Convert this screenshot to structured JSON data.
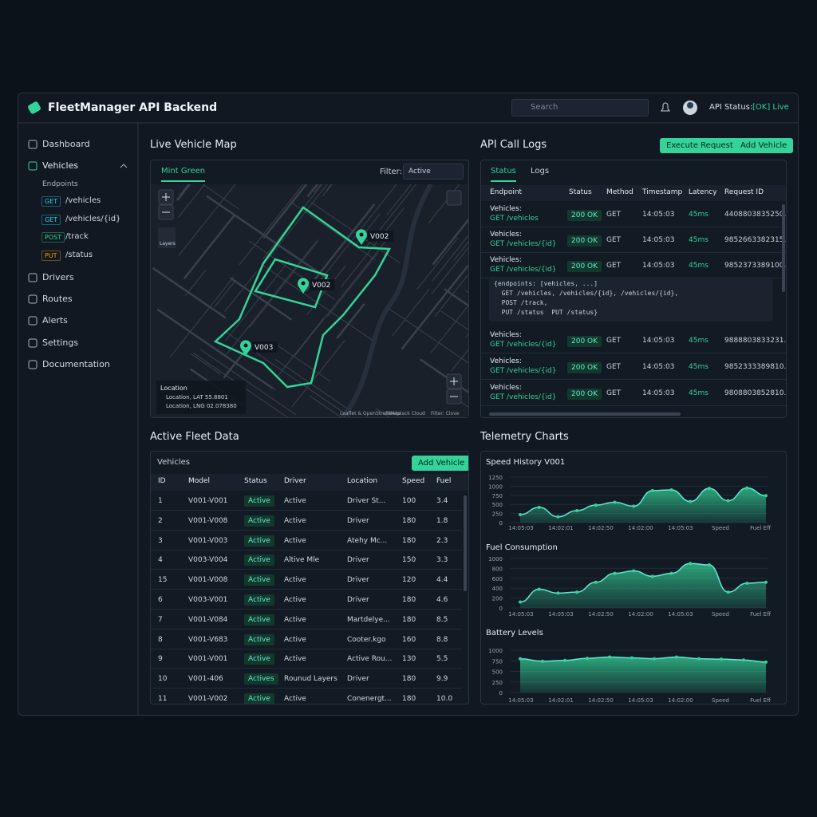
{
  "header": {
    "title": "FleetManager API Backend",
    "search_placeholder": "Search",
    "api_status_label": "API Status:",
    "api_status_value": "[OK] Live"
  },
  "sidebar": {
    "items": [
      "Dashboard",
      "Vehicles",
      "Drivers",
      "Routes",
      "Alerts",
      "Settings",
      "Documentation"
    ],
    "endpoints_label": "Endpoints",
    "endpoints": [
      {
        "method": "GET",
        "path": "/vehicles"
      },
      {
        "method": "GET",
        "path": "/vehicles/{id}"
      },
      {
        "method": "POST",
        "path": "/track"
      },
      {
        "method": "PUT",
        "path": "/status"
      }
    ]
  },
  "map": {
    "title": "Live Vehicle Map",
    "tab": "Mint Green",
    "filter_label": "Filter:",
    "filter_value": "Active",
    "layers_label": "Layers",
    "markers": [
      "V002",
      "V002",
      "V003"
    ],
    "legend_title": "Location",
    "legend": [
      "Location, LAT 55.8801",
      "Location, LNG 02.078380"
    ],
    "attribution": [
      "Leaflet & OpenStreetMap",
      "Fleetstack Cloud",
      "Filter: Clove"
    ]
  },
  "logs": {
    "title": "API Call Logs",
    "buttons": [
      "Execute Request",
      "Add Vehicle"
    ],
    "tabs": [
      "Status",
      "Logs"
    ],
    "columns": [
      "Endpoint",
      "Status",
      "Method",
      "Timestamp",
      "Latency",
      "Request ID"
    ],
    "rows": [
      [
        "Vehicles:",
        "GET /vehicles",
        "200 OK",
        "GET",
        "14:05:03",
        "45ms",
        "4408803835250..."
      ],
      [
        "Vehicles:",
        "GET /vehicles/{id}",
        "200 OK",
        "GET",
        "14:05:03",
        "45ms",
        "9852663382315..."
      ],
      [
        "Vehicles:",
        "GET /vehicles/{id}",
        "200 OK",
        "GET",
        "14:05:03",
        "45ms",
        "9852373389100..."
      ],
      [
        "Vehicles:",
        "GET /vehicles/{id}",
        "200 OK",
        "GET",
        "14:05:03",
        "45ms",
        "9888803833231..."
      ],
      [
        "Vehicles:",
        "GET /vehicles/{id}",
        "200 OK",
        "GET",
        "14:05:03",
        "45ms",
        "9852333389810..."
      ],
      [
        "Vehicles:",
        "GET /vehicles/{id}",
        "200 OK",
        "GET",
        "14:05:03",
        "45ms",
        "9808803852810..."
      ]
    ],
    "code": [
      "{endpoints: [vehicles, ...]",
      "  GET /vehicles, /vehicles/{id}, /vehicles/{id},",
      "  POST /track,",
      "  PUT /status  PUT /status}"
    ]
  },
  "fleet": {
    "title": "Active Fleet Data",
    "subtitle": "Vehicles",
    "button": "Add Vehicle",
    "columns": [
      "ID",
      "Model",
      "Status",
      "Driver",
      "Location",
      "Speed",
      "Fuel"
    ],
    "rows": [
      [
        "1",
        "V001-V001",
        "Active",
        "Active",
        "Driver St...",
        "100",
        "3.4"
      ],
      [
        "2",
        "V001-V008",
        "Active",
        "Active",
        "Driver",
        "180",
        "1.8"
      ],
      [
        "3",
        "V001-V003",
        "Active",
        "Active",
        "Atehy Mc...",
        "180",
        "2.3"
      ],
      [
        "4",
        "V003-V004",
        "Active",
        "Altive Mle",
        "Driver",
        "150",
        "3.3"
      ],
      [
        "15",
        "V001-V008",
        "Active",
        "Active",
        "Driver",
        "120",
        "4.4"
      ],
      [
        "6",
        "V003-V001",
        "Active",
        "Active",
        "Driver",
        "180",
        "4.6"
      ],
      [
        "7",
        "V001-V084",
        "Active",
        "Active",
        "Martdelye...",
        "180",
        "8.5"
      ],
      [
        "8",
        "V001-V683",
        "Active",
        "Active",
        "Cooter.kgo",
        "160",
        "8.8"
      ],
      [
        "9",
        "V001-V001",
        "Active",
        "Active",
        "Active Rou...",
        "130",
        "5.5"
      ],
      [
        "10",
        "V001-406",
        "Actives",
        "Rounud Layers",
        "Driver",
        "180",
        "9.9"
      ],
      [
        "11",
        "V001-V002",
        "Active",
        "Active",
        "Conenergt...",
        "180",
        "10.0"
      ]
    ]
  },
  "telemetry": {
    "title": "Telemetry Charts",
    "charts": [
      {
        "title": "Speed History V001",
        "ylim": [
          0,
          1250
        ],
        "yticks": [
          0,
          250,
          500,
          750,
          1000,
          1250
        ],
        "values": [
          220,
          420,
          160,
          330,
          480,
          560,
          450,
          880,
          900,
          580,
          940,
          600,
          950,
          740
        ],
        "x_labels": [
          "14:05:03",
          "14:02:01",
          "14:02:50",
          "14:02:00",
          "14:05:03",
          "Speed",
          "Fuel Eff"
        ]
      },
      {
        "title": "Fuel Consumption",
        "ylim": [
          0,
          1000
        ],
        "yticks": [
          0,
          200,
          400,
          600,
          800,
          1000
        ],
        "values": [
          120,
          380,
          300,
          320,
          520,
          700,
          750,
          640,
          700,
          900,
          870,
          320,
          500,
          520
        ],
        "x_labels": [
          "14:05:03",
          "14:05:03",
          "14:02:50",
          "14:02:00",
          "14:05:03",
          "Speed",
          "Fuel Eff"
        ]
      },
      {
        "title": "Battery Levels",
        "ylim": [
          0,
          1000
        ],
        "yticks": [
          0,
          250,
          500,
          750,
          1000
        ],
        "values": [
          800,
          740,
          760,
          810,
          840,
          820,
          800,
          840,
          800,
          790,
          770,
          720
        ],
        "x_labels": [
          "14:05:03",
          "14:02:01",
          "14:02:50",
          "14:05:03",
          "14:02:00",
          "Speed",
          "Fuel Eff"
        ]
      }
    ]
  }
}
